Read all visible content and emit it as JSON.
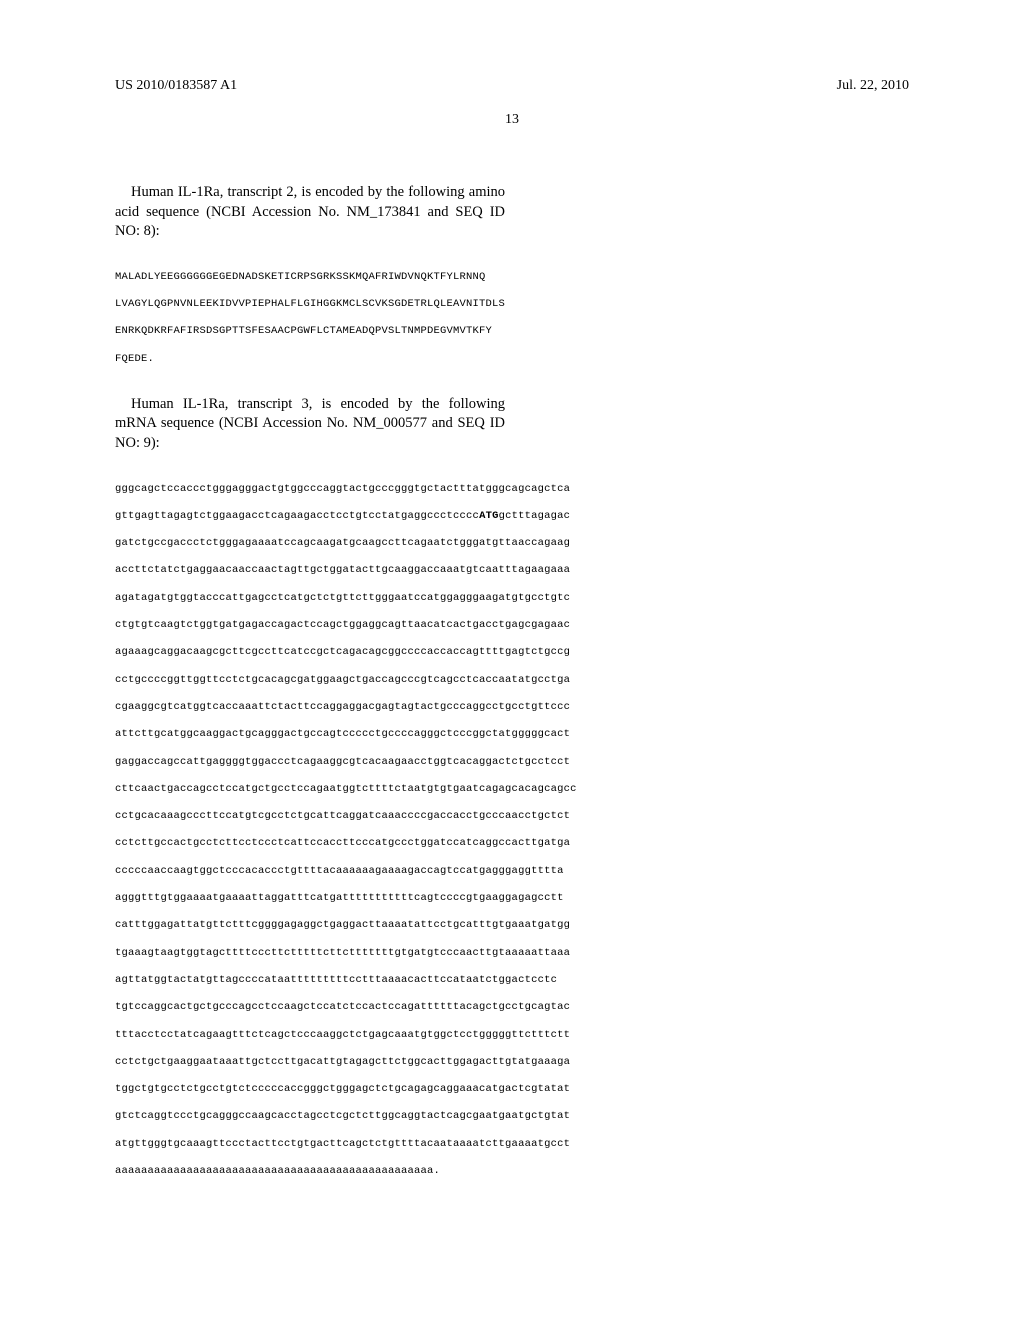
{
  "header": {
    "pub_number": "US 2010/0183587 A1",
    "pub_date": "Jul. 22, 2010",
    "page_number": "13"
  },
  "para1": {
    "text": "Human IL-1Ra, transcript 2, is encoded by the following amino acid sequence (NCBI Accession No. NM_173841 and SEQ ID NO: 8):"
  },
  "seq1": {
    "lines": [
      "MALADLYEEGGGGGGEGEDNADSKETICRPSGRKSSKMQAFRIWDVNQKTFYLRNNQ",
      "LVAGYLQGPNVNLEEKIDVVPIEPHALFLGIHGGKMCLSCVKSGDETRLQLEAVNITDLS",
      "ENRKQDKRFAFIRSDSGPTTSFESAACPGWFLCTAMEADQPVSLTNMPDEGVMVTKFY",
      "FQEDE."
    ]
  },
  "para2": {
    "text": "Human IL-1Ra, transcript 3, is encoded by the following mRNA sequence (NCBI Accession No. NM_000577 and SEQ ID NO: 9):"
  },
  "seq2": {
    "line1_pre": "gggcagctccaccctgggagggactgtggcccaggtactgcccgggtgctactttatgggcagcagctca",
    "line2_pre": "gttgagttagagtctggaagacctcagaagacctcctgtcctatgaggccctcccc",
    "line2_bold": "ATG",
    "line2_post": "gctttagagac",
    "rest": [
      "gatctgccgaccctctgggagaaaatccagcaagatgcaagccttcagaatctgggatgttaaccagaag",
      "accttctatctgaggaacaaccaactagttgctggatacttgcaaggaccaaatgtcaatttagaagaaa",
      "agatagatgtggtacccattgagcctcatgctctgttcttgggaatccatggagggaagatgtgcctgtc",
      "ctgtgtcaagtctggtgatgagaccagactccagctggaggcagttaacatcactgacctgagcgagaac",
      "agaaagcaggacaagcgcttcgccttcatccgctcagacagcggccccaccaccagttttgagtctgccg",
      "cctgccccggttggttcctctgcacagcgatggaagctgaccagcccgtcagcctcaccaatatgcctga",
      "cgaaggcgtcatggtcaccaaattctacttccaggaggacgagtagtactgcccaggcctgcctgttccc",
      "attcttgcatggcaaggactgcagggactgccagtccccctgccccagggctcccggctatgggggcact",
      "gaggaccagccattgaggggtggaccctcagaaggcgtcacaagaacctggtcacaggactctgcctcct",
      "cttcaactgaccagcctccatgctgcctccagaatggtcttttctaatgtgtgaatcagagcacagcagcc",
      "cctgcacaaagcccttccatgtcgcctctgcattcaggatcaaaccccgaccacctgcccaacctgctct",
      "cctcttgccactgcctcttcctccctcattccaccttcccatgccctggatccatcaggccacttgatga",
      "cccccaaccaagtggctcccacaccctgttttacaaaaaagaaaagaccagtccatgagggaggtttta",
      "agggtttgtggaaaatgaaaattaggatttcatgatttttttttttcagtccccgtgaaggagagcctt",
      "catttggagattatgttctttcggggagaggctgaggacttaaaatattcctgcatttgtgaaatgatgg",
      "tgaaagtaagtggtagcttttcccttctttttcttctttttttgtgatgtcccaacttgtaaaaattaaa",
      "agttatggtactatgttagccccataatttttttttcctttaaaacacttccataatctggactcctc",
      "tgtccaggcactgctgcccagcctccaagctccatctccactccagattttttacagctgcctgcagtac",
      "tttacctcctatcagaagtttctcagctcccaaggctctgagcaaatgtggctcctgggggttctttctt",
      "cctctgctgaaggaataaattgctccttgacattgtagagcttctggcacttggagacttgtatgaaaga",
      "tggctgtgcctctgcctgtctcccccaccgggctgggagctctgcagagcaggaaacatgactcgtatat",
      "gtctcaggtccctgcagggccaagcacctagcctcgctcttggcaggtactcagcgaatgaatgctgtat",
      "atgttgggtgcaaagttccctacttcctgtgacttcagctctgttttacaataaaatcttgaaaatgcct",
      "aaaaaaaaaaaaaaaaaaaaaaaaaaaaaaaaaaaaaaaaaaaaaaaaa."
    ]
  }
}
